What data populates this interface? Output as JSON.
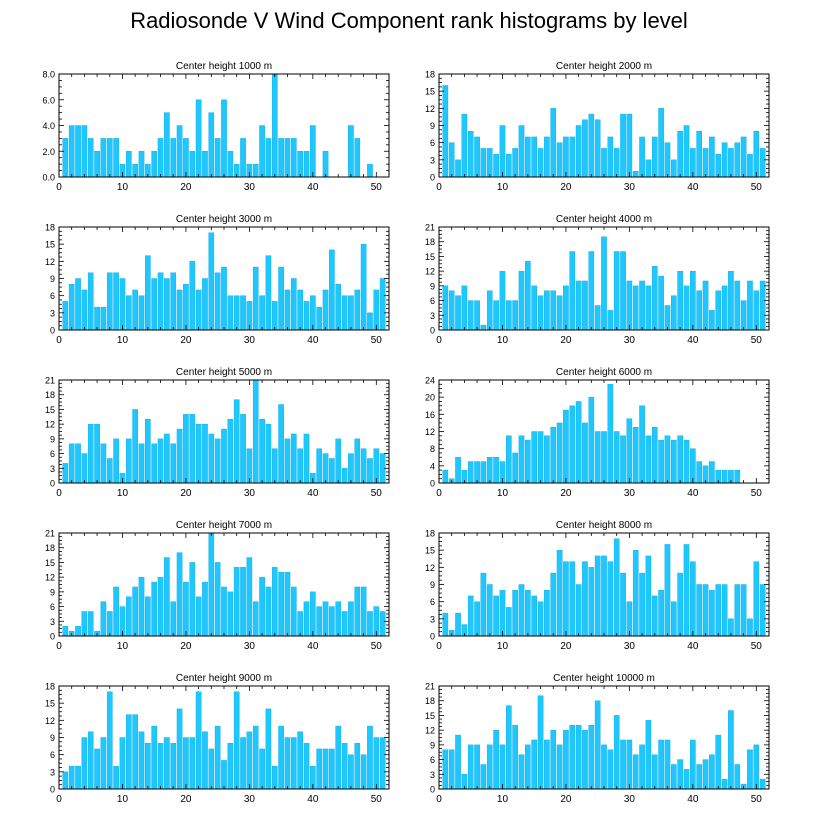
{
  "title": "Radiosonde V Wind Component rank histograms by level",
  "colors": {
    "bar": "#1ec8ff",
    "bar_edge": "#0aa6e0",
    "axis": "#000000"
  },
  "chart_data": [
    {
      "type": "bar",
      "title": "Center height 1000 m",
      "xlim": [
        0,
        52
      ],
      "xticks": [
        0,
        10,
        20,
        30,
        40,
        50
      ],
      "ylim": [
        0,
        8
      ],
      "yticks": [
        0,
        2,
        4,
        6,
        8
      ],
      "ytick_labels": [
        "0.0",
        "2.0",
        "4.0",
        "6.0",
        "8.0"
      ],
      "values": [
        3,
        4,
        4,
        4,
        3,
        2,
        3,
        3,
        3,
        1,
        2,
        1,
        2,
        1,
        2,
        3,
        5,
        3,
        4,
        3,
        2,
        6,
        2,
        5,
        3,
        6,
        2,
        1,
        3,
        1,
        1,
        4,
        3,
        8,
        3,
        3,
        3,
        2,
        2,
        4,
        0,
        2,
        0,
        0,
        0,
        4,
        3,
        0,
        1,
        0,
        0
      ]
    },
    {
      "type": "bar",
      "title": "Center height 2000 m",
      "xlim": [
        0,
        52
      ],
      "xticks": [
        0,
        10,
        20,
        30,
        40,
        50
      ],
      "ylim": [
        0,
        18
      ],
      "yticks": [
        0,
        3,
        6,
        9,
        12,
        15,
        18
      ],
      "ytick_labels": [
        "0",
        "3",
        "6",
        "9",
        "12",
        "15",
        "18"
      ],
      "values": [
        16,
        6,
        3,
        11,
        8,
        7,
        5,
        5,
        4,
        9,
        4,
        5,
        9,
        7,
        7,
        5,
        7,
        12,
        6,
        7,
        7,
        9,
        10,
        11,
        10,
        5,
        7,
        5,
        11,
        11,
        1,
        7,
        3,
        7,
        12,
        6,
        3,
        8,
        9,
        5,
        8,
        5,
        7,
        4,
        6,
        5,
        6,
        7,
        4,
        8,
        5
      ]
    },
    {
      "type": "bar",
      "title": "Center height 3000 m",
      "xlim": [
        0,
        52
      ],
      "xticks": [
        0,
        10,
        20,
        30,
        40,
        50
      ],
      "ylim": [
        0,
        18
      ],
      "yticks": [
        0,
        3,
        6,
        9,
        12,
        15,
        18
      ],
      "ytick_labels": [
        "0",
        "3",
        "6",
        "9",
        "12",
        "15",
        "18"
      ],
      "values": [
        5,
        8,
        9,
        7,
        10,
        4,
        4,
        10,
        10,
        9,
        6,
        7,
        6,
        13,
        9,
        10,
        9,
        10,
        7,
        8,
        12,
        7,
        9,
        17,
        10,
        11,
        6,
        6,
        6,
        5,
        11,
        6,
        13,
        5,
        11,
        7,
        9,
        7,
        5,
        6,
        4,
        7,
        14,
        8,
        6,
        6,
        7,
        15,
        3,
        7,
        9
      ]
    },
    {
      "type": "bar",
      "title": "Center height 4000 m",
      "xlim": [
        0,
        52
      ],
      "xticks": [
        0,
        10,
        20,
        30,
        40,
        50
      ],
      "ylim": [
        0,
        21
      ],
      "yticks": [
        0,
        3,
        6,
        9,
        12,
        15,
        18,
        21
      ],
      "ytick_labels": [
        "0",
        "3",
        "6",
        "9",
        "12",
        "15",
        "18",
        "21"
      ],
      "values": [
        9,
        8,
        7,
        9,
        6,
        6,
        1,
        8,
        6,
        12,
        6,
        6,
        12,
        14,
        9,
        7,
        8,
        8,
        7,
        9,
        16,
        10,
        10,
        16,
        5,
        19,
        4,
        16,
        16,
        10,
        9,
        10,
        9,
        13,
        11,
        5,
        7,
        12,
        9,
        12,
        8,
        10,
        4,
        8,
        9,
        12,
        10,
        6,
        10,
        8,
        10
      ]
    },
    {
      "type": "bar",
      "title": "Center height 5000 m",
      "xlim": [
        0,
        52
      ],
      "xticks": [
        0,
        10,
        20,
        30,
        40,
        50
      ],
      "ylim": [
        0,
        21
      ],
      "yticks": [
        0,
        3,
        6,
        9,
        12,
        15,
        18,
        21
      ],
      "ytick_labels": [
        "0",
        "3",
        "6",
        "9",
        "12",
        "15",
        "18",
        "21"
      ],
      "values": [
        4,
        8,
        8,
        6,
        12,
        12,
        8,
        5,
        9,
        2,
        9,
        15,
        8,
        13,
        8,
        9,
        10,
        8,
        11,
        14,
        14,
        12,
        12,
        10,
        9,
        11,
        13,
        17,
        14,
        7,
        21,
        13,
        12,
        7,
        16,
        9,
        10,
        7,
        10,
        2,
        7,
        6,
        5,
        9,
        3,
        6,
        9,
        7,
        5,
        7,
        6
      ]
    },
    {
      "type": "bar",
      "title": "Center height 6000 m",
      "xlim": [
        0,
        52
      ],
      "xticks": [
        0,
        10,
        20,
        30,
        40,
        50
      ],
      "ylim": [
        0,
        24
      ],
      "yticks": [
        0,
        4,
        8,
        12,
        16,
        20,
        24
      ],
      "ytick_labels": [
        "0",
        "4",
        "8",
        "12",
        "16",
        "20",
        "24"
      ],
      "values": [
        3,
        1,
        6,
        3,
        5,
        5,
        5,
        6,
        6,
        5,
        11,
        7,
        11,
        10,
        12,
        12,
        11,
        13,
        14,
        17,
        18,
        19,
        14,
        20,
        12,
        12,
        23,
        12,
        11,
        15,
        13,
        18,
        11,
        13,
        10,
        11,
        10,
        11,
        10,
        8,
        5,
        4,
        5,
        3,
        3,
        3,
        3
      ]
    },
    {
      "type": "bar",
      "title": "Center height 7000 m",
      "xlim": [
        0,
        52
      ],
      "xticks": [
        0,
        10,
        20,
        30,
        40,
        50
      ],
      "ylim": [
        0,
        21
      ],
      "yticks": [
        0,
        3,
        6,
        9,
        12,
        15,
        18,
        21
      ],
      "ytick_labels": [
        "0",
        "3",
        "6",
        "9",
        "12",
        "15",
        "18",
        "21"
      ],
      "values": [
        2,
        1,
        2,
        5,
        5,
        1,
        7,
        5,
        10,
        6,
        8,
        10,
        12,
        8,
        11,
        12,
        16,
        7,
        17,
        11,
        15,
        8,
        11,
        21,
        15,
        10,
        9,
        14,
        14,
        16,
        7,
        12,
        10,
        14,
        13,
        13,
        10,
        5,
        7,
        9,
        6,
        7,
        6,
        7,
        5,
        7,
        10,
        10,
        5,
        6,
        5
      ]
    },
    {
      "type": "bar",
      "title": "Center height 8000 m",
      "xlim": [
        0,
        52
      ],
      "xticks": [
        0,
        10,
        20,
        30,
        40,
        50
      ],
      "ylim": [
        0,
        18
      ],
      "yticks": [
        0,
        3,
        6,
        9,
        12,
        15,
        18
      ],
      "ytick_labels": [
        "0",
        "3",
        "6",
        "9",
        "12",
        "15",
        "18"
      ],
      "values": [
        4,
        1,
        4,
        2,
        7,
        6,
        11,
        9,
        7,
        8,
        5,
        8,
        9,
        8,
        7,
        6,
        8,
        11,
        15,
        13,
        13,
        9,
        13,
        12,
        14,
        14,
        13,
        17,
        11,
        6,
        15,
        11,
        14,
        7,
        8,
        16,
        6,
        11,
        16,
        13,
        9,
        9,
        8,
        9,
        9,
        3,
        9,
        9,
        3,
        13,
        9
      ]
    },
    {
      "type": "bar",
      "title": "Center height 9000 m",
      "xlim": [
        0,
        52
      ],
      "xticks": [
        0,
        10,
        20,
        30,
        40,
        50
      ],
      "ylim": [
        0,
        18
      ],
      "yticks": [
        0,
        3,
        6,
        9,
        12,
        15,
        18
      ],
      "ytick_labels": [
        "0",
        "3",
        "6",
        "9",
        "12",
        "15",
        "18"
      ],
      "values": [
        3,
        4,
        4,
        9,
        10,
        7,
        9,
        17,
        4,
        9,
        13,
        13,
        10,
        8,
        11,
        8,
        9,
        8,
        14,
        9,
        9,
        17,
        10,
        7,
        11,
        5,
        8,
        17,
        9,
        10,
        11,
        7,
        14,
        4,
        11,
        9,
        9,
        10,
        8,
        4,
        7,
        7,
        7,
        11,
        8,
        6,
        8,
        6,
        11,
        9,
        9
      ]
    },
    {
      "type": "bar",
      "title": "Center height 10000 m",
      "xlim": [
        0,
        52
      ],
      "xticks": [
        0,
        10,
        20,
        30,
        40,
        50
      ],
      "ylim": [
        0,
        21
      ],
      "yticks": [
        0,
        3,
        6,
        9,
        12,
        15,
        18,
        21
      ],
      "ytick_labels": [
        "0",
        "3",
        "6",
        "9",
        "12",
        "15",
        "18",
        "21"
      ],
      "values": [
        8,
        8,
        11,
        3,
        9,
        9,
        5,
        9,
        12,
        9,
        17,
        13,
        7,
        9,
        10,
        19,
        10,
        12,
        9,
        12,
        13,
        13,
        12,
        13,
        18,
        9,
        8,
        15,
        10,
        10,
        7,
        9,
        14,
        7,
        10,
        10,
        5,
        6,
        4,
        10,
        5,
        6,
        7,
        11,
        2,
        16,
        5,
        1,
        8,
        9,
        2
      ]
    }
  ]
}
